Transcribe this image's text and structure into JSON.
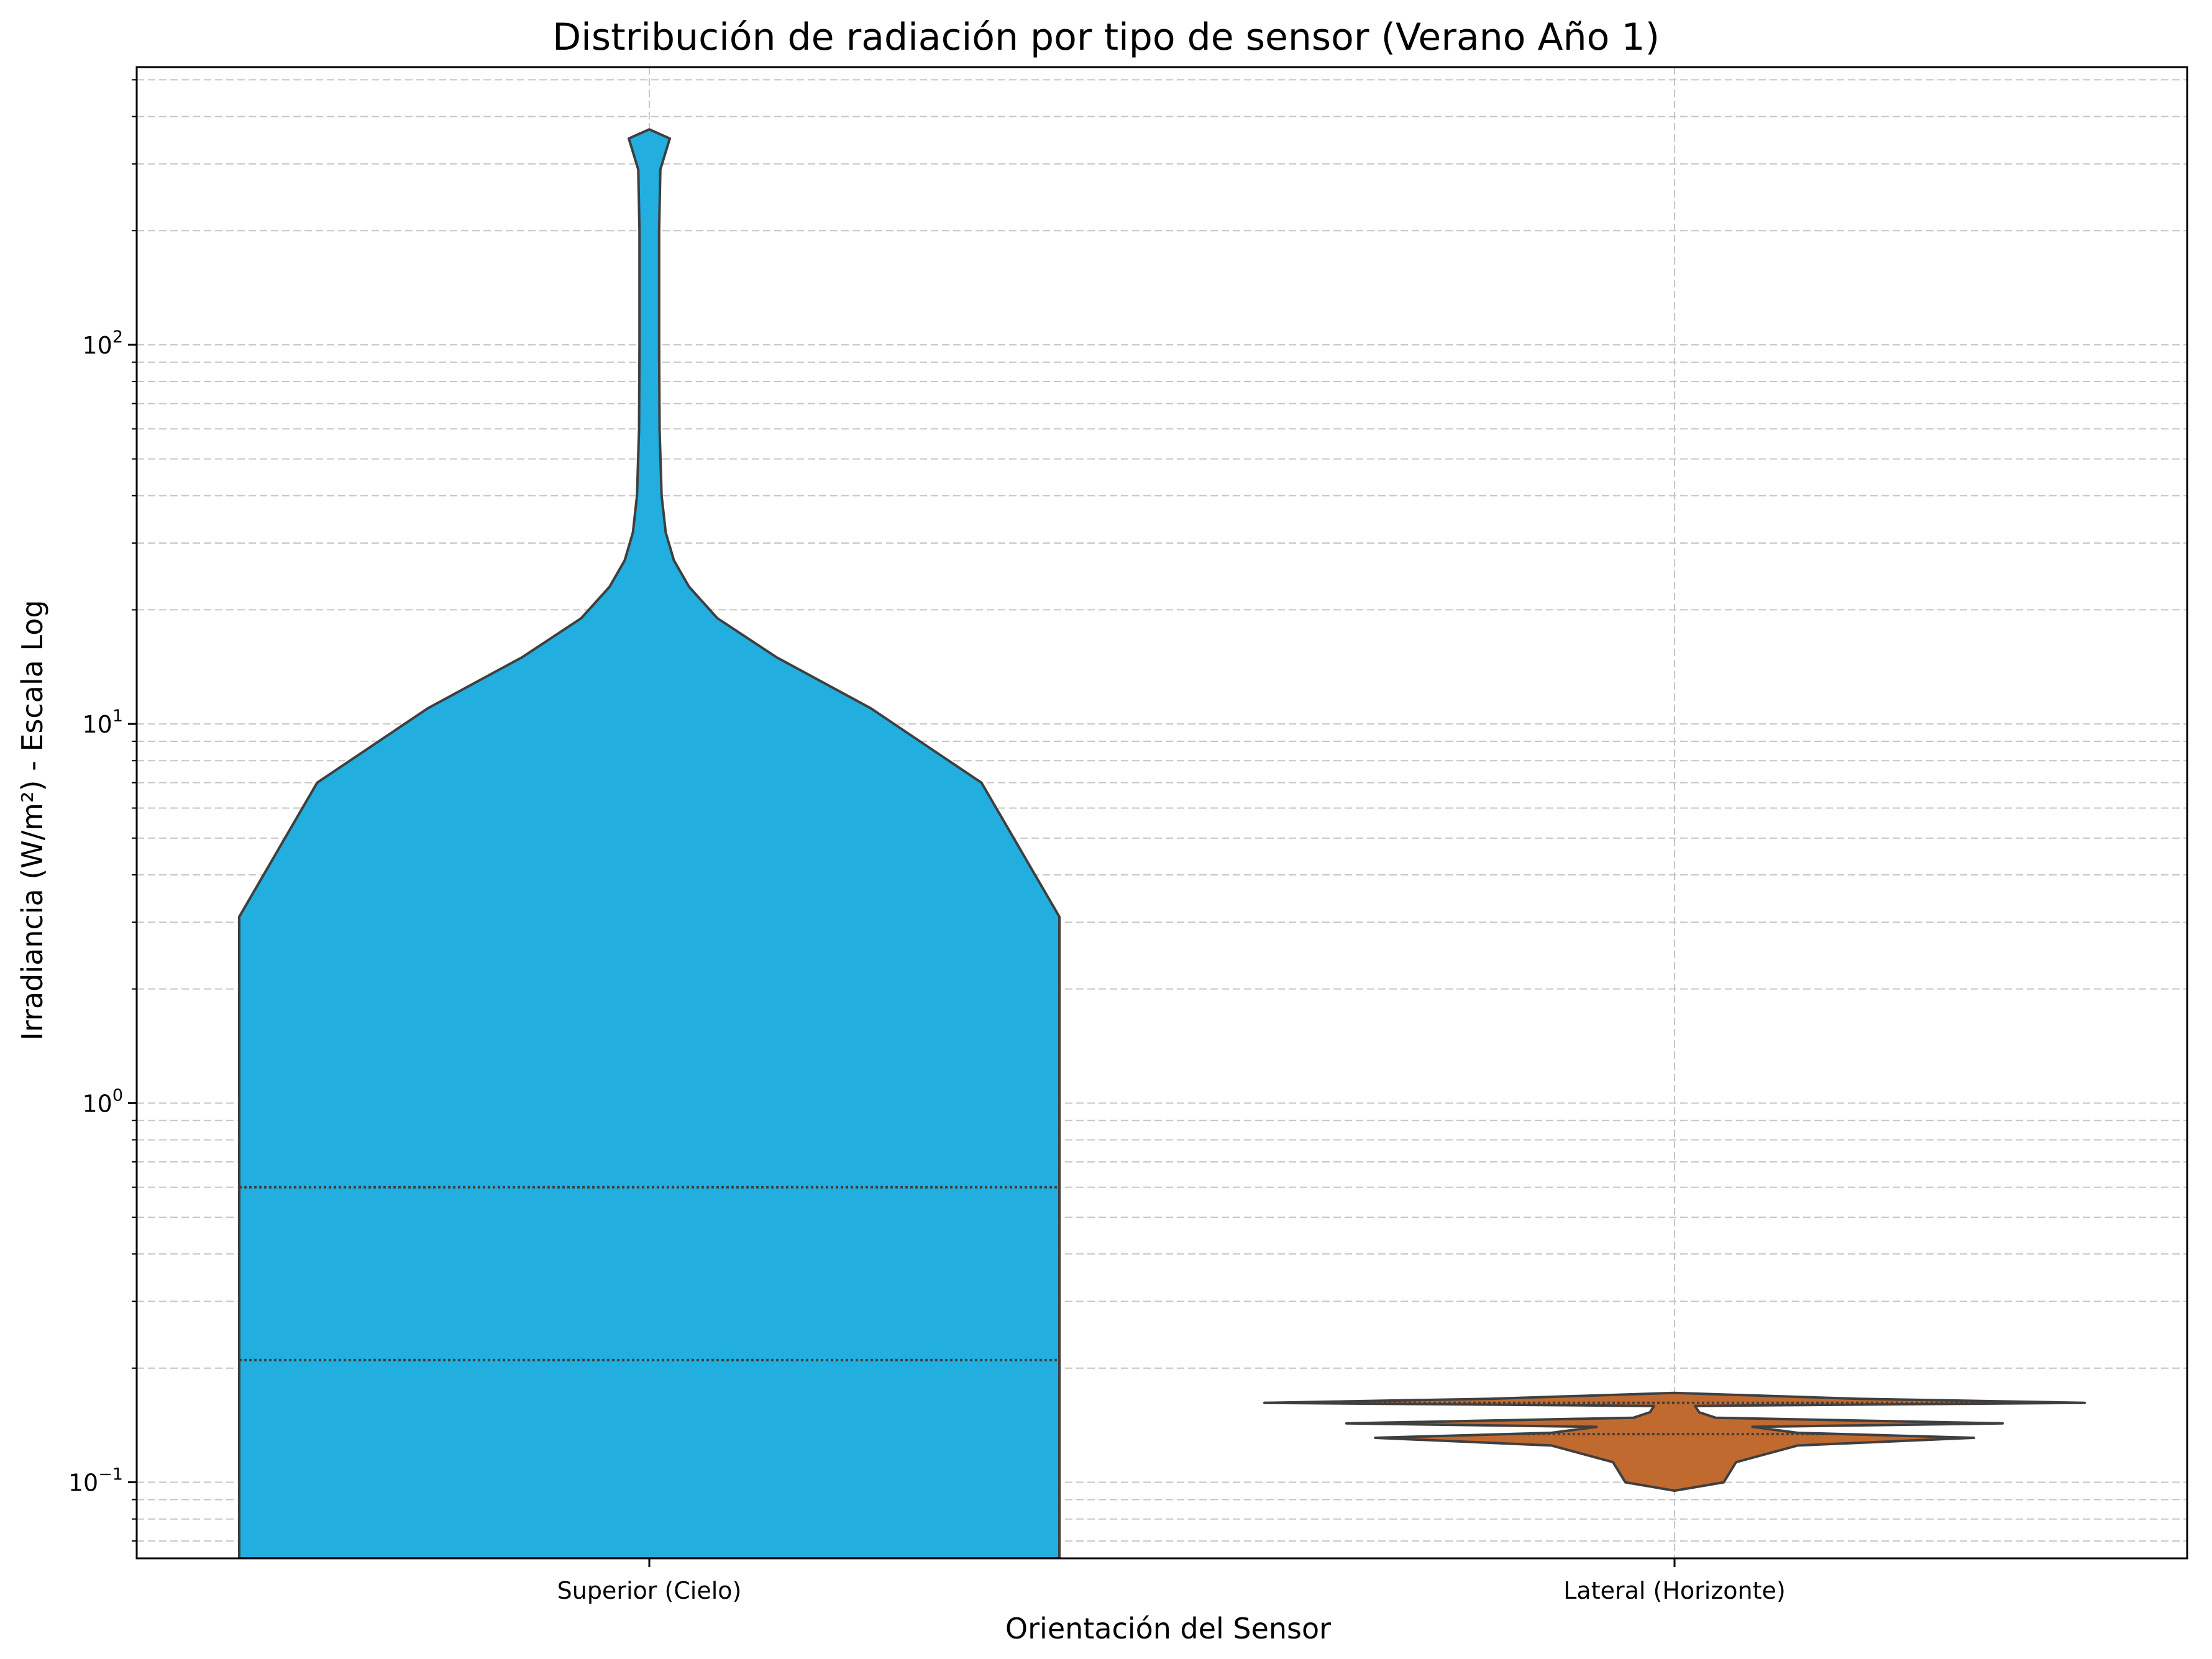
{
  "chart_data": {
    "type": "violin",
    "title": "Distribución de radiación por tipo de sensor (Verano Año 1)",
    "xlabel": "Orientación del Sensor",
    "ylabel": "Irradiancia (W/m²) - Escala Log",
    "yscale": "log",
    "ylim": [
      0.063,
      540
    ],
    "grid": true,
    "categories": [
      "Superior (Cielo)",
      "Lateral (Horizonte)"
    ],
    "y_ticks": [
      {
        "value": 0.1,
        "base": "10",
        "exp": "−1"
      },
      {
        "value": 1,
        "base": "10",
        "exp": "0"
      },
      {
        "value": 10,
        "base": "10",
        "exp": "1"
      },
      {
        "value": 100,
        "base": "10",
        "exp": "2"
      }
    ],
    "series": [
      {
        "category": "Superior (Cielo)",
        "color": "#22AEDE",
        "quartiles": [
          0.21,
          0.6
        ],
        "max": 370,
        "density": [
          {
            "y": 0.063,
            "w": 1.0
          },
          {
            "y": 3.1,
            "w": 1.0
          },
          {
            "y": 7.0,
            "w": 0.81
          },
          {
            "y": 11.0,
            "w": 0.54
          },
          {
            "y": 15.0,
            "w": 0.31
          },
          {
            "y": 19.0,
            "w": 0.166
          },
          {
            "y": 23.0,
            "w": 0.097
          },
          {
            "y": 27.0,
            "w": 0.06
          },
          {
            "y": 32.0,
            "w": 0.04
          },
          {
            "y": 40.0,
            "w": 0.03
          },
          {
            "y": 60.0,
            "w": 0.025
          },
          {
            "y": 100.0,
            "w": 0.024
          },
          {
            "y": 200.0,
            "w": 0.024
          },
          {
            "y": 290.0,
            "w": 0.027
          },
          {
            "y": 350.0,
            "w": 0.05
          },
          {
            "y": 370.0,
            "w": 0.0
          }
        ]
      },
      {
        "category": "Lateral (Horizonte)",
        "color": "#C06A30",
        "quartiles": [
          0.134,
          0.162
        ],
        "min": 0.095,
        "max": 0.172,
        "density": [
          {
            "y": 0.095,
            "w": 0.0
          },
          {
            "y": 0.1,
            "w": 0.12
          },
          {
            "y": 0.113,
            "w": 0.15
          },
          {
            "y": 0.125,
            "w": 0.3
          },
          {
            "y": 0.131,
            "w": 0.73
          },
          {
            "y": 0.135,
            "w": 0.3
          },
          {
            "y": 0.14,
            "w": 0.19
          },
          {
            "y": 0.143,
            "w": 0.8
          },
          {
            "y": 0.148,
            "w": 0.1
          },
          {
            "y": 0.153,
            "w": 0.06
          },
          {
            "y": 0.159,
            "w": 0.05
          },
          {
            "y": 0.162,
            "w": 1.0
          },
          {
            "y": 0.166,
            "w": 0.45
          },
          {
            "y": 0.172,
            "w": 0.0
          }
        ]
      }
    ]
  }
}
